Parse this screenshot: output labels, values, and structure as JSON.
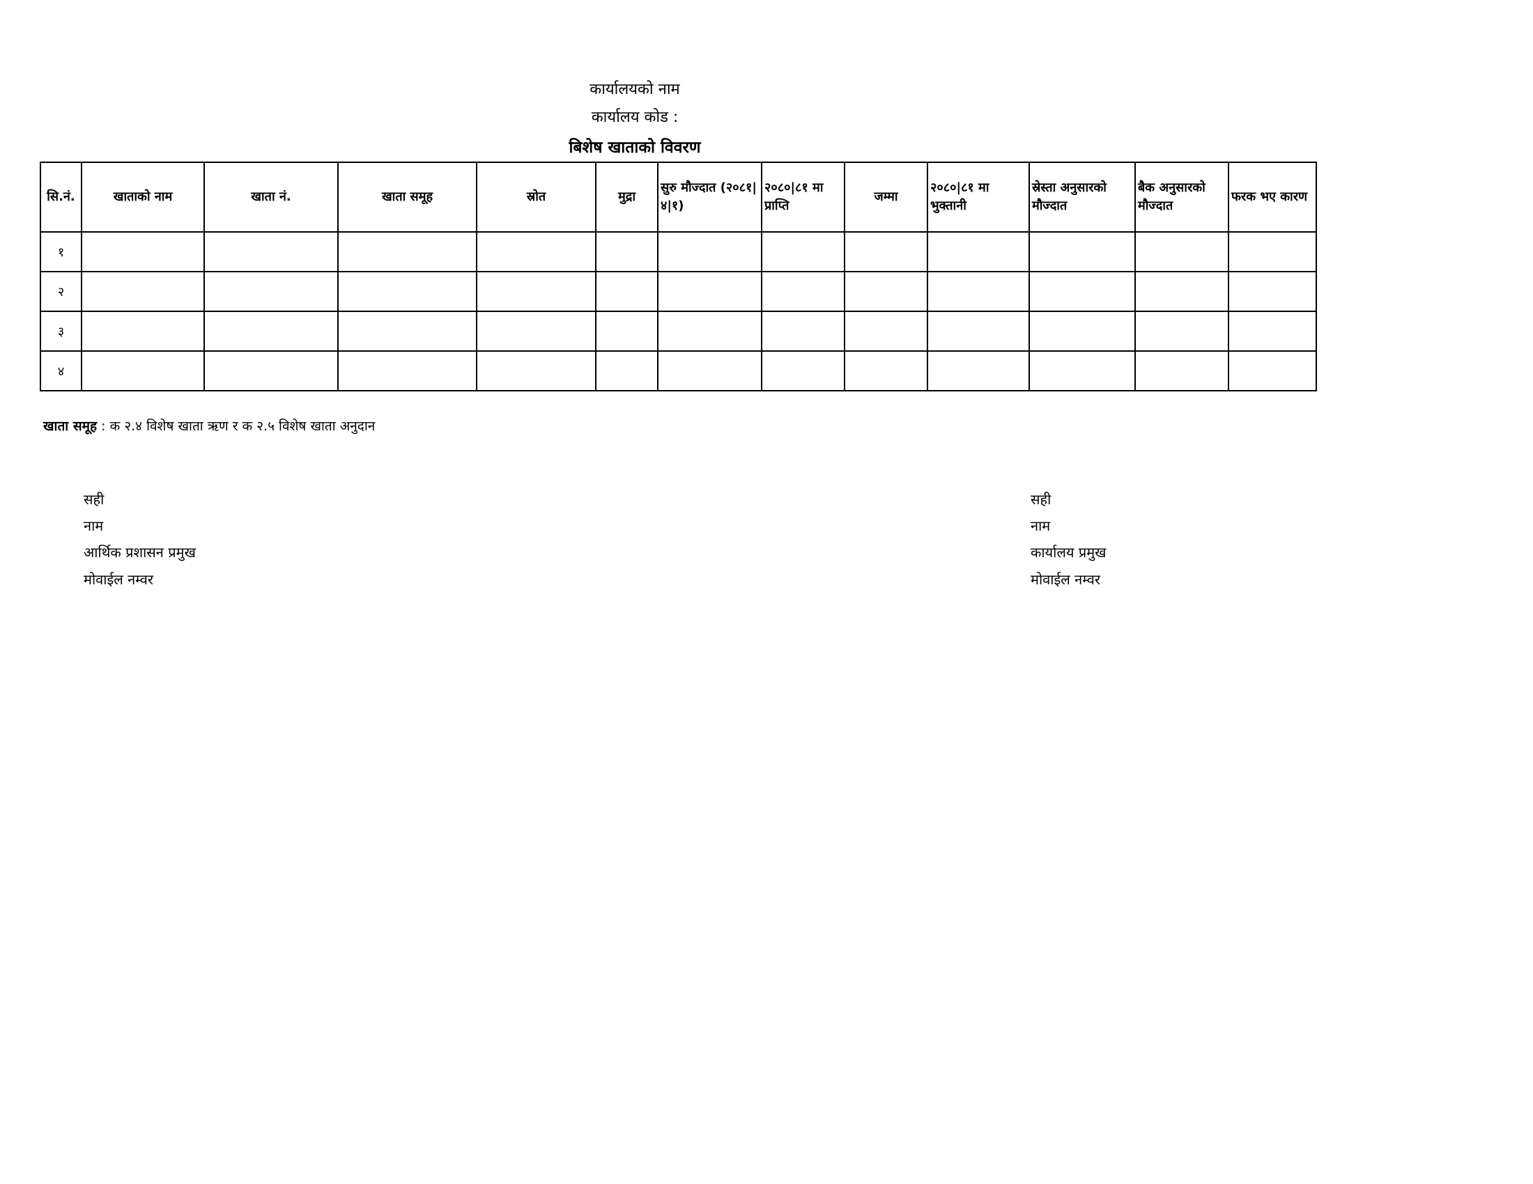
{
  "header": {
    "office_name": "कार्यालयको नाम",
    "office_code": "कार्यालय कोड :",
    "title": "बिशेष खाताको विवरण"
  },
  "table": {
    "columns": [
      "सि.नं.",
      "खाताको नाम",
      "खाता नं.",
      "खाता समूह",
      "स्रोत",
      "मुद्रा",
      "सुरु मौज्दात (२०८१|४|१)",
      "२०८०|८१ मा प्राप्ति",
      "जम्मा",
      "२०८०|८१ मा भुक्तानी",
      "स्रेस्ता अनुसारको मौज्दात",
      "बैक अनुसारको मौज्दात",
      "फरक भए कारण"
    ],
    "rows": [
      "१",
      "२",
      "३",
      "४"
    ]
  },
  "note": {
    "label": "खाता समूह",
    "text": " : क २.४ विशेष खाता ऋण  र  क २.५ विशेष खाता अनुदान"
  },
  "signatures": {
    "left": [
      "सही",
      "नाम",
      "आर्थिक प्रशासन प्रमुख",
      "मोवाईल नम्वर"
    ],
    "right": [
      "सही",
      "नाम",
      "कार्यालय प्रमुख",
      "मोवाईल नम्वर"
    ]
  }
}
